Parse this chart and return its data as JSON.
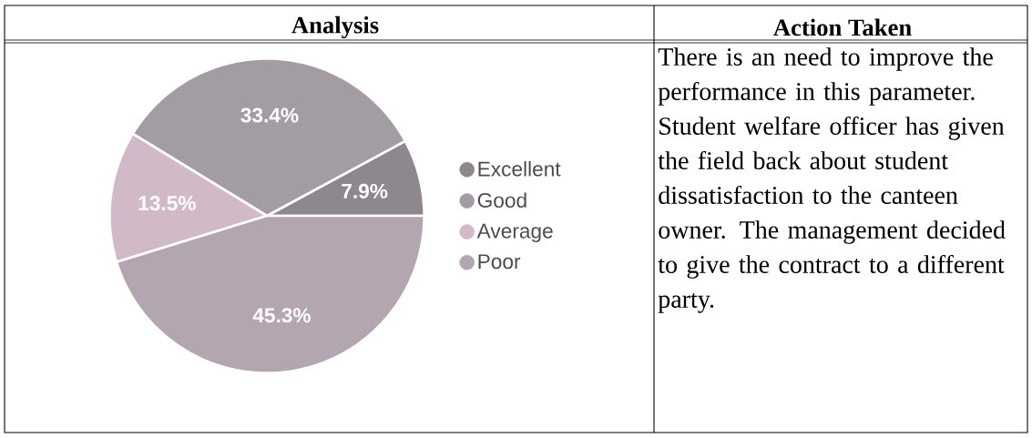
{
  "chart_data": [
    {
      "type": "pie",
      "title": "Analysis",
      "categories": [
        "Excellent",
        "Good",
        "Average",
        "Poor"
      ],
      "values": [
        7.9,
        33.4,
        13.5,
        45.3
      ],
      "value_labels": [
        "7.9%",
        "33.4%",
        "13.5%",
        "45.3%"
      ],
      "colors": [
        "#8e888e",
        "#a39ca3",
        "#d2b9c8",
        "#b3a6b1"
      ],
      "legend": "right"
    },
    {
      "type": "other",
      "title": "Action Taken",
      "annotations": [
        "There is an need to improve the performance in this parameter. Student welfare officer has given the field back about student dissatisfaction to the canteen owner. The management decided to give the contract to a different party."
      ]
    }
  ]
}
